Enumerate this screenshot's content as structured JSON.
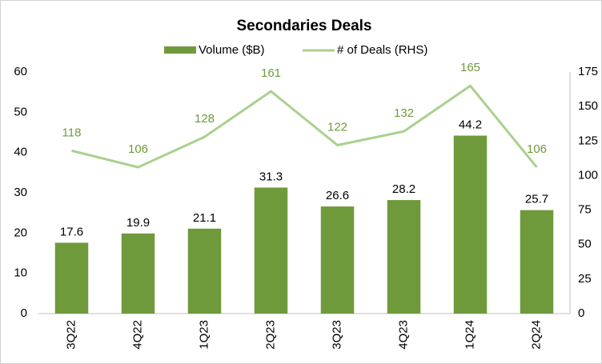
{
  "chart_data": {
    "type": "bar",
    "title": "Secondaries Deals",
    "categories": [
      "3Q22",
      "4Q22",
      "1Q23",
      "2Q23",
      "3Q23",
      "4Q23",
      "1Q24",
      "2Q24"
    ],
    "series": [
      {
        "name": "Volume ($B)",
        "type": "bar",
        "color": "#6f9a3b",
        "values": [
          17.6,
          19.9,
          21.1,
          31.3,
          26.6,
          28.2,
          44.2,
          25.7
        ]
      },
      {
        "name": "# of Deals (RHS)",
        "type": "line",
        "axis": "y2",
        "color": "#a9d18e",
        "label_color": "#6f9a3b",
        "values": [
          118,
          106,
          128,
          161,
          122,
          132,
          165,
          106
        ]
      }
    ],
    "ylim": [
      0,
      60
    ],
    "yticks": [
      0,
      10,
      20,
      30,
      40,
      50,
      60
    ],
    "y2lim": [
      0,
      175
    ],
    "y2ticks": [
      0,
      25,
      50,
      75,
      100,
      125,
      150,
      175
    ],
    "grid": false,
    "legend": "top"
  }
}
